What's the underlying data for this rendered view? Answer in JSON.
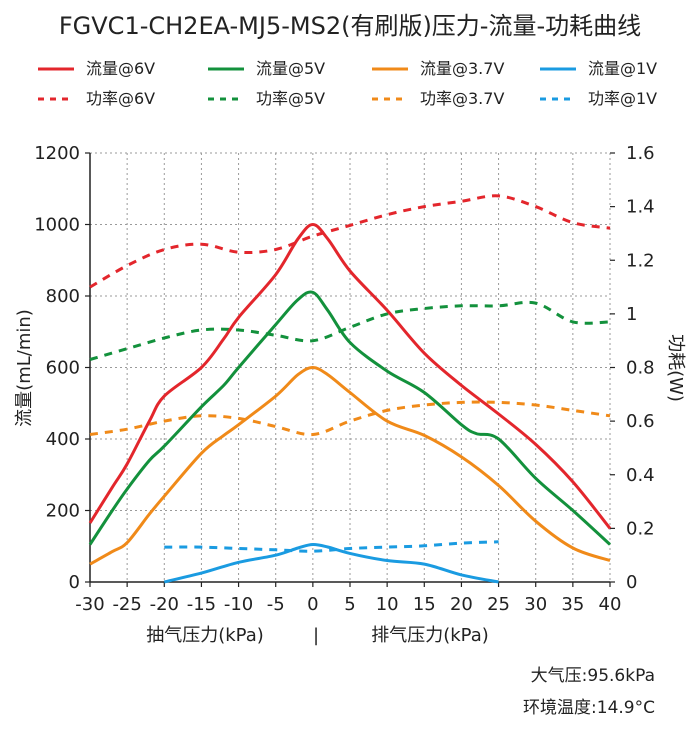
{
  "chart_data": {
    "type": "line",
    "title": "FGVC1-CH2EA-MJ5-MS2(有刷版)压力-流量-功耗曲线",
    "ylabel": "流量(mL/min)",
    "y2label": "功耗(W)",
    "xlabel_left": "抽气压力(kPa)",
    "xlabel_sep": "|",
    "xlabel_right": "排气压力(kPa)",
    "xlim": [
      -30,
      40
    ],
    "ylim": [
      0,
      1200
    ],
    "y2lim": [
      0,
      1.6
    ],
    "xticks": [
      -30,
      -25,
      -20,
      -15,
      -10,
      -5,
      0,
      5,
      10,
      15,
      20,
      25,
      30,
      35,
      40
    ],
    "yticks": [
      0,
      200,
      400,
      600,
      800,
      1000,
      1200
    ],
    "y2ticks": [
      "0",
      "0.2",
      "0.4",
      "0.6",
      "0.8",
      "1",
      "1.2",
      "1.4",
      "1.6"
    ],
    "grid": true,
    "legend_position": "top",
    "flow_series": [
      {
        "name": "流量@6V",
        "color": "#e3262c",
        "x": [
          -30,
          -27,
          -25,
          -22,
          -20,
          -15,
          -12,
          -10,
          -5,
          -2,
          0,
          2,
          5,
          10,
          15,
          20,
          25,
          30,
          35,
          40
        ],
        "y": [
          165,
          265,
          330,
          450,
          520,
          600,
          680,
          740,
          860,
          960,
          1000,
          960,
          870,
          760,
          640,
          550,
          470,
          385,
          280,
          150
        ]
      },
      {
        "name": "流量@5V",
        "color": "#13913c",
        "x": [
          -30,
          -27,
          -25,
          -22,
          -20,
          -15,
          -12,
          -10,
          -5,
          -2,
          0,
          2,
          5,
          10,
          15,
          20,
          22,
          25,
          30,
          35,
          40
        ],
        "y": [
          105,
          200,
          260,
          340,
          380,
          490,
          550,
          600,
          720,
          790,
          810,
          760,
          670,
          590,
          530,
          440,
          415,
          400,
          290,
          200,
          105
        ]
      },
      {
        "name": "流量@3.7V",
        "color": "#f08a19",
        "x": [
          -30,
          -27,
          -25,
          -22,
          -20,
          -15,
          -12,
          -10,
          -5,
          -2,
          0,
          2,
          5,
          10,
          15,
          20,
          25,
          30,
          35,
          40
        ],
        "y": [
          50,
          85,
          110,
          190,
          240,
          360,
          410,
          440,
          520,
          580,
          600,
          580,
          530,
          450,
          410,
          350,
          270,
          170,
          95,
          60
        ]
      },
      {
        "name": "流量@1V",
        "color": "#1a9be1",
        "x": [
          -20,
          -15,
          -10,
          -5,
          -2,
          0,
          2,
          5,
          10,
          15,
          20,
          25
        ],
        "y": [
          0,
          25,
          55,
          75,
          95,
          105,
          98,
          80,
          60,
          50,
          20,
          0
        ]
      }
    ],
    "power_series": [
      {
        "name": "功率@6V",
        "color": "#e3262c",
        "x": [
          -30,
          -25,
          -20,
          -15,
          -10,
          -5,
          0,
          5,
          10,
          15,
          20,
          25,
          30,
          35,
          40
        ],
        "y": [
          1.1,
          1.18,
          1.24,
          1.26,
          1.23,
          1.24,
          1.29,
          1.33,
          1.37,
          1.4,
          1.42,
          1.44,
          1.4,
          1.34,
          1.32
        ]
      },
      {
        "name": "功率@5V",
        "color": "#13913c",
        "x": [
          -30,
          -25,
          -20,
          -15,
          -10,
          -5,
          0,
          5,
          10,
          15,
          20,
          25,
          30,
          35,
          40
        ],
        "y": [
          0.83,
          0.87,
          0.91,
          0.94,
          0.94,
          0.92,
          0.9,
          0.95,
          1.0,
          1.02,
          1.03,
          1.03,
          1.04,
          0.97,
          0.97
        ]
      },
      {
        "name": "功率@3.7V",
        "color": "#f08a19",
        "x": [
          -30,
          -25,
          -20,
          -15,
          -10,
          -5,
          0,
          5,
          10,
          15,
          20,
          25,
          30,
          35,
          40
        ],
        "y": [
          0.55,
          0.57,
          0.6,
          0.62,
          0.61,
          0.58,
          0.55,
          0.6,
          0.64,
          0.66,
          0.67,
          0.67,
          0.66,
          0.64,
          0.62
        ]
      },
      {
        "name": "功率@1V",
        "color": "#1a9be1",
        "x": [
          -20,
          -15,
          -10,
          -5,
          0,
          5,
          10,
          15,
          20,
          25
        ],
        "y": [
          0.13,
          0.13,
          0.125,
          0.12,
          0.115,
          0.125,
          0.13,
          0.135,
          0.145,
          0.15
        ]
      }
    ]
  },
  "conditions": {
    "pressure": "大气压:95.6kPa",
    "temperature": "环境温度:14.9°C"
  }
}
